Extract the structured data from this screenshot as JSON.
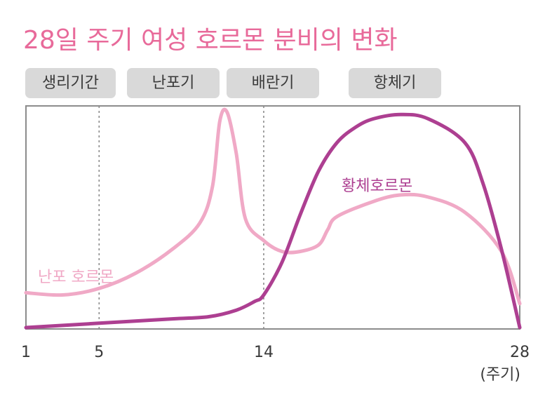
{
  "chart_data": {
    "type": "line",
    "title": "28일 주기 여성 호르몬 분비의 변화",
    "xlabel": "(주기)",
    "ylabel": "",
    "xlim": [
      1,
      28
    ],
    "x_ticks": [
      1,
      5,
      14,
      28
    ],
    "phases": [
      {
        "label": "생리기간",
        "x_start": 1,
        "x_end": 5
      },
      {
        "label": "난포기",
        "x_start": 5,
        "x_end": 11
      },
      {
        "label": "배란기",
        "x_start": 11,
        "x_end": 16
      },
      {
        "label": "항체기",
        "x_start": 16,
        "x_end": 28
      }
    ],
    "vlines": [
      5,
      14
    ],
    "grid": false,
    "legend": "inline",
    "series": [
      {
        "name": "난포 호르몬",
        "color": "#F0A9C6",
        "x": [
          1,
          3,
          5,
          7,
          9,
          10.5,
          11.2,
          11.6,
          12,
          12.5,
          13,
          14,
          15,
          16,
          17,
          17.5,
          18,
          20,
          21.5,
          23,
          25,
          27,
          28
        ],
        "y": [
          0.16,
          0.15,
          0.18,
          0.25,
          0.36,
          0.48,
          0.65,
          0.95,
          0.99,
          0.8,
          0.5,
          0.4,
          0.35,
          0.35,
          0.38,
          0.45,
          0.51,
          0.58,
          0.61,
          0.6,
          0.53,
          0.35,
          0.11
        ]
      },
      {
        "name": "황체호르몬",
        "color": "#AD3F91",
        "x": [
          1,
          5,
          9,
          11,
          12.5,
          13.5,
          14,
          15,
          16,
          17,
          18,
          19,
          20,
          21.5,
          23,
          25,
          26,
          27,
          28
        ],
        "y": [
          0.0,
          0.02,
          0.04,
          0.05,
          0.08,
          0.12,
          0.15,
          0.3,
          0.52,
          0.72,
          0.85,
          0.92,
          0.96,
          0.98,
          0.96,
          0.85,
          0.66,
          0.36,
          0.0
        ]
      }
    ]
  }
}
